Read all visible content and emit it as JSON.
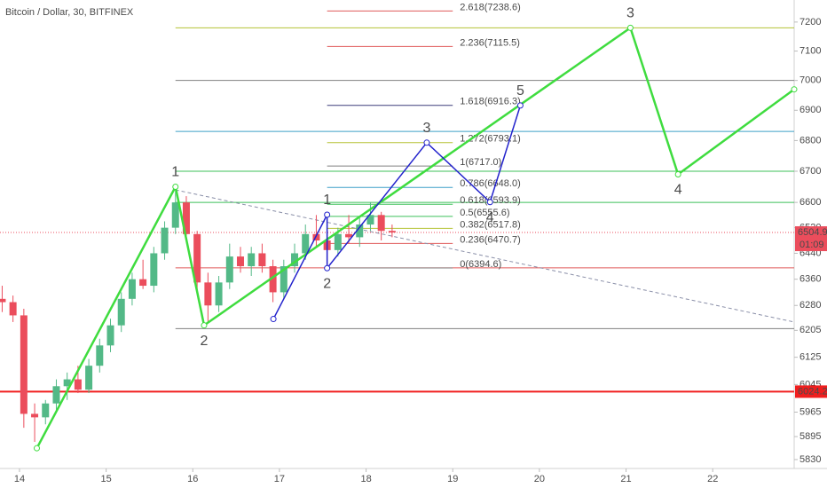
{
  "chart_data": {
    "type": "candlestick",
    "title": "Bitcoin / Dollar, 30, BITFINEX",
    "log_scale": true,
    "xlim": [
      13.775,
      22.94
    ],
    "xticks": [
      14,
      15,
      16,
      17,
      18,
      19,
      20,
      21,
      22
    ],
    "ylim": [
      5805,
      7277
    ],
    "yticks": [
      7200,
      7100,
      7000,
      6900,
      6800,
      6700,
      6600,
      6520,
      6440,
      6360,
      6280,
      6205,
      6125,
      6045,
      5965,
      5895,
      5830
    ],
    "up_color": "#53b987",
    "down_color": "#eb4d5c",
    "x": [
      13.8,
      13.925,
      14.05,
      14.175,
      14.3,
      14.425,
      14.55,
      14.675,
      14.8,
      14.925,
      15.05,
      15.175,
      15.3,
      15.425,
      15.55,
      15.675,
      15.8,
      15.925,
      16.05,
      16.175,
      16.3,
      16.425,
      16.55,
      16.675,
      16.8,
      16.925,
      17.05,
      17.175,
      17.3,
      17.425,
      17.55,
      17.675,
      17.8,
      17.925,
      18.05,
      18.175,
      18.3
    ],
    "open": [
      6300,
      6290,
      6250,
      5960,
      5950,
      5990,
      6040,
      6060,
      6030,
      6100,
      6160,
      6220,
      6300,
      6360,
      6340,
      6440,
      6520,
      6600,
      6500,
      6350,
      6280,
      6350,
      6430,
      6400,
      6440,
      6400,
      6320,
      6400,
      6440,
      6500,
      6480,
      6450,
      6500,
      6490,
      6530,
      6560,
      6510
    ],
    "high": [
      6340,
      6310,
      6270,
      5990,
      6000,
      6060,
      6080,
      6100,
      6120,
      6180,
      6240,
      6320,
      6380,
      6420,
      6460,
      6540,
      6640,
      6620,
      6510,
      6380,
      6370,
      6470,
      6460,
      6460,
      6470,
      6420,
      6420,
      6470,
      6530,
      6560,
      6520,
      6520,
      6560,
      6550,
      6600,
      6570,
      6530
    ],
    "low": [
      6260,
      6230,
      5920,
      5880,
      5930,
      5970,
      6000,
      6020,
      6020,
      6080,
      6140,
      6200,
      6280,
      6330,
      6320,
      6420,
      6500,
      6480,
      6320,
      6230,
      6260,
      6330,
      6380,
      6370,
      6380,
      6290,
      6300,
      6380,
      6420,
      6460,
      6400,
      6430,
      6470,
      6460,
      6510,
      6480,
      6490
    ],
    "close": [
      6290,
      6250,
      5960,
      5950,
      5990,
      6040,
      6060,
      6030,
      6100,
      6160,
      6220,
      6300,
      6360,
      6340,
      6440,
      6520,
      6600,
      6500,
      6350,
      6280,
      6350,
      6430,
      6400,
      6440,
      6400,
      6320,
      6400,
      6440,
      6500,
      6480,
      6450,
      6500,
      6490,
      6530,
      6560,
      6510,
      6505
    ],
    "fib_levels": [
      {
        "label": "2.618(7238.6)",
        "value": 7238.6,
        "color": "#e05a5a"
      },
      {
        "label": "2.236(7115.5)",
        "value": 7115.5,
        "color": "#e05a5a"
      },
      {
        "label": "1.618(6916.3)",
        "value": 6916.3,
        "color": "#3d3d7a"
      },
      {
        "label": "1.272(6793.1)",
        "value": 6793.1,
        "color": "#b5c234"
      },
      {
        "label": "1(6717.0)",
        "value": 6717.0,
        "color": "#808080"
      },
      {
        "label": "0.786(6648.0)",
        "value": 6648.0,
        "color": "#3fa0c8"
      },
      {
        "label": "0.618(6593.9)",
        "value": 6593.9,
        "color": "#3ec05a"
      },
      {
        "label": "0.5(6555.6)",
        "value": 6555.6,
        "color": "#3ec05a"
      },
      {
        "label": "0.382(6517.8)",
        "value": 6517.8,
        "color": "#b5c234"
      },
      {
        "label": "0.236(6470.7)",
        "value": 6470.7,
        "color": "#e05a5a"
      },
      {
        "label": "0(6394.6)",
        "value": 6394.6,
        "color": "#808080"
      }
    ],
    "levels": [
      {
        "value": 7180,
        "color": "#b5c234"
      },
      {
        "value": 7000,
        "color": "#808080"
      },
      {
        "value": 6830,
        "color": "#3fa0c8"
      },
      {
        "value": 6700,
        "color": "#3ec05a"
      },
      {
        "value": 6600,
        "color": "#3ec05a"
      },
      {
        "value": 6395,
        "color": "#e05a5a"
      },
      {
        "value": 6210,
        "color": "#808080"
      }
    ],
    "waves": [
      {
        "color": "#3fdc3f",
        "label_color": "#2aa52a",
        "x": [
          14.2,
          15.8,
          16.13,
          21.05,
          21.6,
          22.94
        ],
        "values": [
          5862,
          6650,
          6220,
          7180,
          6690,
          6970
        ],
        "labels": [
          null,
          "1",
          "2",
          "3",
          "4",
          null
        ]
      },
      {
        "color": "#2222cc",
        "label_color": "#1a1a8a",
        "x": [
          16.93,
          17.55,
          17.55,
          18.7,
          19.43,
          19.78
        ],
        "values": [
          6239,
          6561,
          6394,
          6793,
          6601,
          6916
        ],
        "labels": [
          null,
          "1",
          "2",
          "3",
          "4",
          "5"
        ]
      }
    ],
    "trendline": {
      "x": [
        15.8,
        22.94
      ],
      "values": [
        6640,
        6230
      ]
    },
    "support": {
      "value": 6024.2,
      "color": "#f01e1e"
    },
    "last_price": 6504.9,
    "countdown": "01:09"
  }
}
